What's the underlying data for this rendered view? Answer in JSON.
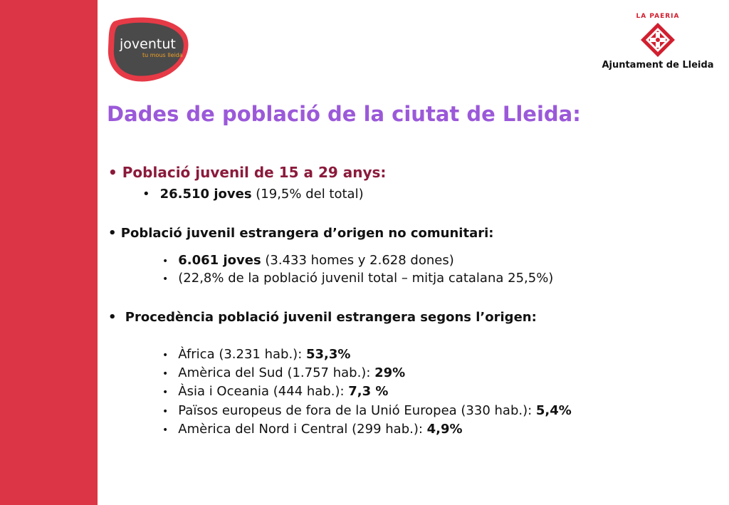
{
  "logos": {
    "joventut": {
      "main": "joventut",
      "tagline": "tu mous lleida"
    },
    "ajuntament": {
      "top": "LA PAERIA",
      "name": "Ajuntament de Lleida"
    }
  },
  "title": "Dades de població de la ciutat de Lleida:",
  "sections": {
    "juvenil": {
      "heading": "Població juvenil de 15 a 29 anys:",
      "item_bold": "26.510 joves",
      "item_rest": " (19,5% del total)"
    },
    "estrangera": {
      "heading": "Població juvenil estrangera d’origen no comunitari:",
      "item1_bold": "6.061 joves",
      "item1_rest": " (3.433 homes y 2.628 dones)",
      "item2": "(22,8% de la població juvenil total – mitja catalana 25,5%)"
    },
    "procedencia": {
      "heading": "Procedència població juvenil estrangera segons l’origen:",
      "items": [
        {
          "text": "Àfrica (3.231 hab.): ",
          "value": "53,3%"
        },
        {
          "text": "Amèrica del Sud (1.757 hab.): ",
          "value": "29%"
        },
        {
          "text": "Àsia i Oceania (444 hab.): ",
          "value": "7,3 %"
        },
        {
          "text": "Països europeus de fora de la Unió Europea (330 hab.): ",
          "value": "5,4%"
        },
        {
          "text": "Amèrica del Nord i Central (299 hab.): ",
          "value": "4,9%"
        }
      ]
    }
  },
  "colors": {
    "sidebar": "#dc3545",
    "title": "#9b59d9",
    "heading": "#8b1a3b"
  }
}
